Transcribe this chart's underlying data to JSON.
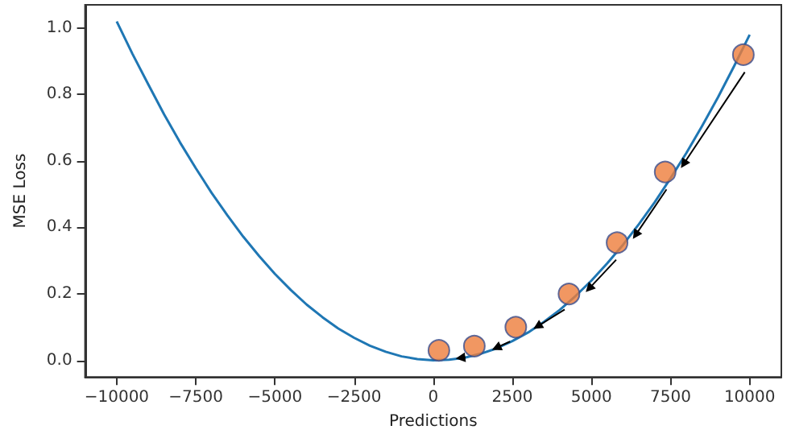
{
  "chart_data": {
    "type": "line",
    "xlabel": "Predictions",
    "ylabel": "MSE Loss",
    "xlim": [
      -11000,
      11000
    ],
    "ylim": [
      -0.05,
      1.07
    ],
    "xticks": [
      -10000,
      -7500,
      -5000,
      -2500,
      0,
      2500,
      5000,
      7500,
      10000
    ],
    "yticks": [
      {
        "value": 0,
        "label": "0.0"
      },
      {
        "value": 0.2,
        "label": "0.2"
      },
      {
        "value": 0.4,
        "label": "0.4"
      },
      {
        "value": 0.6,
        "label": "0.6"
      },
      {
        "value": 0.8,
        "label": "0.8"
      },
      {
        "value": 1,
        "label": "1.0"
      }
    ],
    "grid": false,
    "series": [
      {
        "color": "#1f77b4",
        "marker": "none",
        "x": [
          -10000,
          -9500,
          -9000,
          -8500,
          -8000,
          -7500,
          -7000,
          -6500,
          -6000,
          -5500,
          -5000,
          -4500,
          -4000,
          -3500,
          -3000,
          -2500,
          -2000,
          -1500,
          -1000,
          -500,
          0,
          500,
          1000,
          1500,
          2000,
          2500,
          3000,
          3500,
          4000,
          4500,
          5000,
          5500,
          6000,
          6500,
          7000,
          7500,
          8000,
          8500,
          9000,
          9500,
          10000
        ],
        "values": [
          1.02,
          0.922,
          0.83,
          0.74,
          0.656,
          0.578,
          0.504,
          0.436,
          0.372,
          0.314,
          0.26,
          0.212,
          0.168,
          0.13,
          0.096,
          0.068,
          0.044,
          0.026,
          0.012,
          0.004,
          0,
          0.002,
          0.008,
          0.02,
          0.036,
          0.058,
          0.084,
          0.116,
          0.152,
          0.194,
          0.24,
          0.292,
          0.348,
          0.41,
          0.476,
          0.548,
          0.624,
          0.706,
          0.792,
          0.884,
          0.98
        ]
      },
      {
        "type": "scatter",
        "color": "#ee7d3b",
        "marker": "circle",
        "x": [
          9800,
          7330,
          5810,
          4290,
          2610,
          1300,
          180
        ],
        "values": [
          0.92,
          0.567,
          0.354,
          0.2,
          0.1,
          0.043,
          0.03
        ]
      }
    ]
  }
}
